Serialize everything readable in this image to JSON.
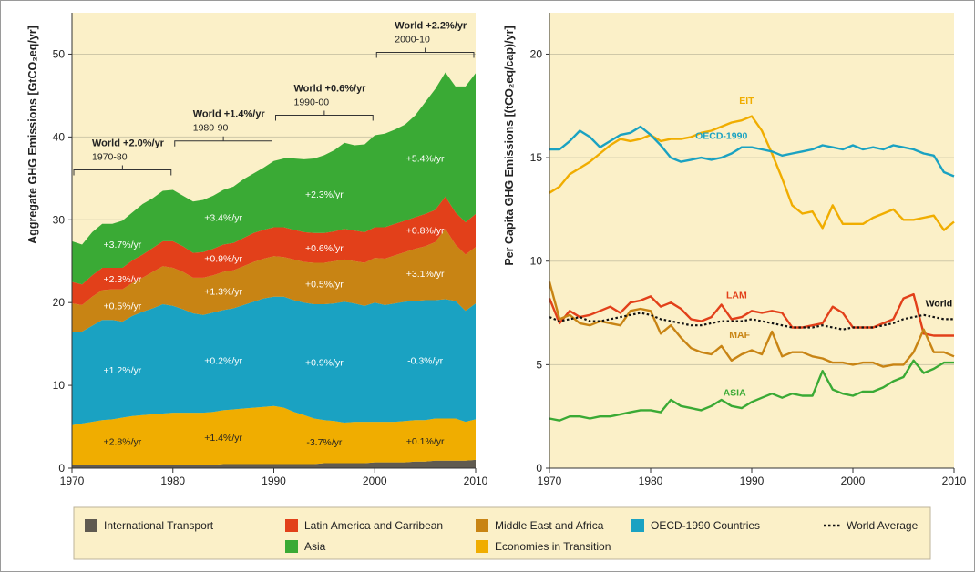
{
  "colors": {
    "panel_bg": "#fbf0c8",
    "grid": "#cfc8a8",
    "transport": "#5f5a50",
    "eit": "#f0ad00",
    "oecd": "#1aa2c2",
    "maf": "#c88414",
    "lam": "#e2401a",
    "asia": "#3aaa35",
    "world": "#111111",
    "legend_bg": "#fbf0c8"
  },
  "left_panel": {
    "ylabel": "Aggregate GHG Emissions [GtCO₂eq/yr]",
    "yticks": [
      "0",
      "10",
      "20",
      "30",
      "40",
      "50"
    ],
    "xticks": [
      "1970",
      "1980",
      "1990",
      "2000",
      "2010"
    ],
    "periods": [
      {
        "title": "World +2.0%/yr",
        "sub": "1970-80"
      },
      {
        "title": "World +1.4%/yr",
        "sub": "1980-90"
      },
      {
        "title": "World +0.6%/yr",
        "sub": "1990-00"
      },
      {
        "title": "World +2.2%/yr",
        "sub": "2000-10"
      }
    ],
    "rates": {
      "asia": [
        "+3.7%/yr",
        "+3.4%/yr",
        "+2.3%/yr",
        "+5.4%/yr"
      ],
      "lam": [
        "+2.3%/yr",
        "+0.9%/yr",
        "+0.6%/yr",
        "+0.8%/yr"
      ],
      "maf": [
        "+0.5%/yr",
        "+1.3%/yr",
        "+0.5%/yr",
        "+3.1%/yr"
      ],
      "oecd": [
        "+1.2%/yr",
        "+0.2%/yr",
        "+0.9%/yr",
        "-0.3%/yr"
      ],
      "eit": [
        "+2.8%/yr",
        "+1.4%/yr",
        "-3.7%/yr",
        "+0.1%/yr"
      ]
    }
  },
  "right_panel": {
    "ylabel": "Per Capita GHG Emissions [(tCO₂eq/cap)/yr]",
    "yticks": [
      "0",
      "5",
      "10",
      "15",
      "20"
    ],
    "xticks": [
      "1970",
      "1980",
      "1990",
      "2000",
      "2010"
    ],
    "labels": {
      "eit": "EIT",
      "oecd": "OECD-1990",
      "lam": "LAM",
      "maf": "MAF",
      "asia": "ASIA",
      "world": "World"
    }
  },
  "legend": {
    "transport": "International Transport",
    "lam": "Latin America and Carribean",
    "maf": "Middle East and Africa",
    "oecd": "OECD-1990 Countries",
    "world": "World Average",
    "asia": "Asia",
    "eit": "Economies in Transition"
  },
  "chart_data": [
    {
      "type": "area",
      "stacked": true,
      "ylabel": "Aggregate GHG Emissions [GtCO₂eq/yr]",
      "xlabel": "",
      "xlim": [
        1970,
        2010
      ],
      "ylim": [
        0,
        55
      ],
      "x": [
        1970,
        1971,
        1972,
        1973,
        1974,
        1975,
        1976,
        1977,
        1978,
        1979,
        1980,
        1981,
        1982,
        1983,
        1984,
        1985,
        1986,
        1987,
        1988,
        1989,
        1990,
        1991,
        1992,
        1993,
        1994,
        1995,
        1996,
        1997,
        1998,
        1999,
        2000,
        2001,
        2002,
        2003,
        2004,
        2005,
        2006,
        2007,
        2008,
        2009,
        2010
      ],
      "series": [
        {
          "name": "International Transport",
          "values": [
            0.4,
            0.4,
            0.4,
            0.4,
            0.4,
            0.4,
            0.4,
            0.4,
            0.4,
            0.4,
            0.4,
            0.4,
            0.4,
            0.4,
            0.4,
            0.5,
            0.5,
            0.5,
            0.5,
            0.5,
            0.5,
            0.5,
            0.5,
            0.5,
            0.5,
            0.6,
            0.6,
            0.6,
            0.6,
            0.6,
            0.7,
            0.7,
            0.7,
            0.7,
            0.8,
            0.8,
            0.9,
            0.9,
            0.9,
            0.9,
            1.0
          ]
        },
        {
          "name": "Economies in Transition",
          "values": [
            4.8,
            5.0,
            5.2,
            5.4,
            5.5,
            5.7,
            5.9,
            6.0,
            6.1,
            6.2,
            6.3,
            6.3,
            6.3,
            6.3,
            6.4,
            6.5,
            6.6,
            6.7,
            6.8,
            6.9,
            7.0,
            6.8,
            6.3,
            5.9,
            5.5,
            5.2,
            5.1,
            4.9,
            5.0,
            5.0,
            4.9,
            4.9,
            4.9,
            5.0,
            5.0,
            5.0,
            5.1,
            5.1,
            5.1,
            4.7,
            4.9
          ]
        },
        {
          "name": "OECD-1990 Countries",
          "values": [
            11.3,
            11.1,
            11.6,
            12.1,
            12.0,
            11.6,
            12.1,
            12.5,
            12.8,
            13.2,
            12.9,
            12.5,
            12.0,
            11.8,
            12.0,
            12.1,
            12.2,
            12.5,
            12.8,
            13.1,
            13.2,
            13.4,
            13.5,
            13.6,
            13.8,
            14.0,
            14.2,
            14.6,
            14.3,
            14.0,
            14.4,
            14.1,
            14.3,
            14.4,
            14.4,
            14.5,
            14.3,
            14.4,
            14.2,
            13.4,
            14.0
          ]
        },
        {
          "name": "Middle East and Africa",
          "values": [
            3.4,
            3.2,
            3.5,
            3.6,
            3.7,
            3.9,
            4.0,
            4.1,
            4.4,
            4.6,
            4.6,
            4.5,
            4.3,
            4.5,
            4.5,
            4.6,
            4.6,
            4.7,
            4.8,
            4.8,
            4.9,
            4.8,
            4.9,
            4.9,
            5.0,
            5.0,
            5.1,
            5.1,
            5.1,
            5.2,
            5.4,
            5.6,
            5.8,
            6.0,
            6.3,
            6.5,
            7.0,
            8.5,
            6.8,
            6.8,
            6.8
          ]
        },
        {
          "name": "Latin America and Caribbean",
          "values": [
            2.6,
            2.5,
            2.6,
            2.7,
            2.6,
            2.6,
            2.7,
            2.8,
            2.9,
            3.0,
            3.2,
            3.1,
            3.0,
            3.1,
            3.2,
            3.3,
            3.3,
            3.4,
            3.5,
            3.5,
            3.5,
            3.6,
            3.6,
            3.6,
            3.6,
            3.6,
            3.6,
            3.7,
            3.7,
            3.7,
            3.7,
            3.8,
            3.8,
            3.8,
            3.8,
            3.9,
            3.9,
            3.9,
            3.9,
            3.9,
            4.0
          ]
        },
        {
          "name": "Asia",
          "values": [
            4.9,
            4.8,
            5.2,
            5.3,
            5.3,
            5.7,
            5.8,
            6.1,
            6.0,
            6.1,
            6.2,
            6.1,
            6.2,
            6.3,
            6.4,
            6.6,
            6.8,
            7.1,
            7.2,
            7.5,
            8.0,
            8.3,
            8.6,
            8.8,
            9.0,
            9.4,
            9.8,
            10.4,
            10.3,
            10.6,
            11.1,
            11.3,
            11.4,
            11.6,
            12.3,
            13.5,
            14.6,
            15.0,
            15.2,
            16.4,
            17.0
          ]
        }
      ]
    },
    {
      "type": "line",
      "ylabel": "Per Capita GHG Emissions [(tCO₂eq/cap)/yr]",
      "xlabel": "",
      "xlim": [
        1970,
        2010
      ],
      "ylim": [
        0,
        22
      ],
      "x": [
        1970,
        1971,
        1972,
        1973,
        1974,
        1975,
        1976,
        1977,
        1978,
        1979,
        1980,
        1981,
        1982,
        1983,
        1984,
        1985,
        1986,
        1987,
        1988,
        1989,
        1990,
        1991,
        1992,
        1993,
        1994,
        1995,
        1996,
        1997,
        1998,
        1999,
        2000,
        2001,
        2002,
        2003,
        2004,
        2005,
        2006,
        2007,
        2008,
        2009,
        2010
      ],
      "series": [
        {
          "name": "EIT",
          "values": [
            13.3,
            13.6,
            14.2,
            14.5,
            14.8,
            15.2,
            15.6,
            15.9,
            15.8,
            15.9,
            16.1,
            15.8,
            15.9,
            15.9,
            16.0,
            16.2,
            16.3,
            16.5,
            16.7,
            16.8,
            17.0,
            16.3,
            15.2,
            14.0,
            12.7,
            12.3,
            12.4,
            11.6,
            12.7,
            11.8,
            11.8,
            11.8,
            12.1,
            12.3,
            12.5,
            12.0,
            12.0,
            12.1,
            12.2,
            11.5,
            11.9
          ]
        },
        {
          "name": "OECD-1990",
          "values": [
            15.4,
            15.4,
            15.8,
            16.3,
            16.0,
            15.5,
            15.8,
            16.1,
            16.2,
            16.5,
            16.1,
            15.6,
            15.0,
            14.8,
            14.9,
            15.0,
            14.9,
            15.0,
            15.2,
            15.5,
            15.5,
            15.4,
            15.3,
            15.1,
            15.2,
            15.3,
            15.4,
            15.6,
            15.5,
            15.4,
            15.6,
            15.4,
            15.5,
            15.4,
            15.6,
            15.5,
            15.4,
            15.2,
            15.1,
            14.3,
            14.1
          ]
        },
        {
          "name": "LAM",
          "values": [
            8.2,
            7.0,
            7.6,
            7.3,
            7.4,
            7.6,
            7.8,
            7.5,
            8.0,
            8.1,
            8.3,
            7.8,
            8.0,
            7.7,
            7.2,
            7.1,
            7.3,
            7.9,
            7.2,
            7.3,
            7.6,
            7.5,
            7.6,
            7.5,
            6.8,
            6.8,
            6.9,
            7.0,
            7.8,
            7.5,
            6.8,
            6.8,
            6.8,
            7.0,
            7.2,
            8.2,
            8.4,
            6.5,
            6.4,
            6.4,
            6.4
          ]
        },
        {
          "name": "MAF",
          "values": [
            9.0,
            7.2,
            7.4,
            7.0,
            6.9,
            7.1,
            7.0,
            6.9,
            7.6,
            7.7,
            7.6,
            6.5,
            6.9,
            6.3,
            5.8,
            5.6,
            5.5,
            5.9,
            5.2,
            5.5,
            5.7,
            5.5,
            6.6,
            5.4,
            5.6,
            5.6,
            5.4,
            5.3,
            5.1,
            5.1,
            5.0,
            5.1,
            5.1,
            4.9,
            5.0,
            5.0,
            5.6,
            6.7,
            5.6,
            5.6,
            5.4
          ]
        },
        {
          "name": "World",
          "values": [
            7.3,
            7.1,
            7.2,
            7.3,
            7.1,
            7.1,
            7.2,
            7.3,
            7.4,
            7.5,
            7.4,
            7.2,
            7.1,
            7.0,
            6.9,
            6.9,
            7.0,
            7.1,
            7.1,
            7.1,
            7.2,
            7.1,
            7.0,
            6.9,
            6.8,
            6.8,
            6.8,
            6.9,
            6.8,
            6.7,
            6.8,
            6.8,
            6.8,
            6.9,
            7.0,
            7.2,
            7.3,
            7.4,
            7.3,
            7.2,
            7.2
          ]
        },
        {
          "name": "ASIA",
          "values": [
            2.4,
            2.3,
            2.5,
            2.5,
            2.4,
            2.5,
            2.5,
            2.6,
            2.7,
            2.8,
            2.8,
            2.7,
            3.3,
            3.0,
            2.9,
            2.8,
            3.0,
            3.3,
            3.0,
            2.9,
            3.2,
            3.4,
            3.6,
            3.4,
            3.6,
            3.5,
            3.5,
            4.7,
            3.8,
            3.6,
            3.5,
            3.7,
            3.7,
            3.9,
            4.2,
            4.4,
            5.2,
            4.6,
            4.8,
            5.1,
            5.1
          ]
        }
      ]
    }
  ]
}
